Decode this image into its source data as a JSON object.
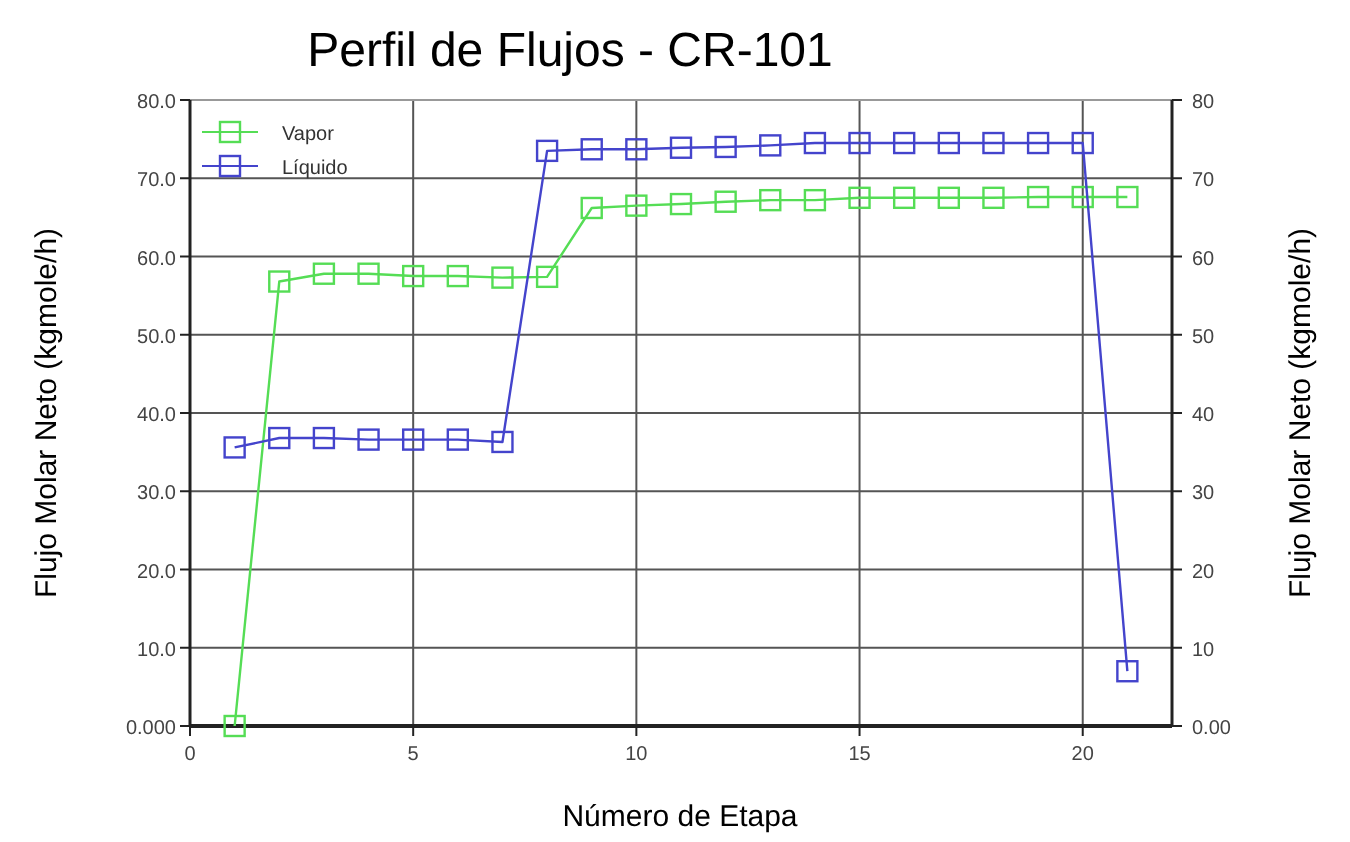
{
  "chart_data": {
    "type": "line",
    "title": "Perfil de Flujos - CR-101",
    "xlabel": "Número de Etapa",
    "ylabel": "Flujo Molar Neto (kgmole/h)",
    "y2label": "Flujo Molar Neto (kgmole/h)",
    "x": [
      1,
      2,
      3,
      4,
      5,
      6,
      7,
      8,
      9,
      10,
      11,
      12,
      13,
      14,
      15,
      16,
      17,
      18,
      19,
      20,
      21
    ],
    "series": [
      {
        "name": "Vapor",
        "color": "#55dd55",
        "values": [
          0,
          56.8,
          57.8,
          57.8,
          57.5,
          57.5,
          57.3,
          57.4,
          66.2,
          66.5,
          66.7,
          67.0,
          67.2,
          67.2,
          67.5,
          67.5,
          67.5,
          67.5,
          67.6,
          67.6,
          67.6
        ]
      },
      {
        "name": "Líquido",
        "color": "#4444cc",
        "values": [
          35.6,
          36.8,
          36.8,
          36.6,
          36.6,
          36.6,
          36.3,
          73.5,
          73.7,
          73.7,
          73.9,
          74.0,
          74.2,
          74.5,
          74.5,
          74.5,
          74.5,
          74.5,
          74.5,
          74.5,
          7.0
        ]
      }
    ],
    "xlim": [
      0,
      22
    ],
    "xticks": [
      0,
      5,
      10,
      15,
      20
    ],
    "ylim": [
      0,
      80
    ],
    "yticks": [
      {
        "value": 0,
        "label": "0.000"
      },
      {
        "value": 10,
        "label": "10.0"
      },
      {
        "value": 20,
        "label": "20.0"
      },
      {
        "value": 30,
        "label": "30.0"
      },
      {
        "value": 40,
        "label": "40.0"
      },
      {
        "value": 50,
        "label": "50.0"
      },
      {
        "value": 60,
        "label": "60.0"
      },
      {
        "value": 70,
        "label": "70.0"
      },
      {
        "value": 80,
        "label": "80.0"
      }
    ],
    "y2lim": [
      0,
      80
    ],
    "y2ticks": [
      {
        "value": 0,
        "label": "0.00"
      },
      10,
      20,
      30,
      40,
      50,
      60,
      70,
      80
    ],
    "grid": true,
    "legend": "top left",
    "marker": "square",
    "line_style": "solid"
  }
}
